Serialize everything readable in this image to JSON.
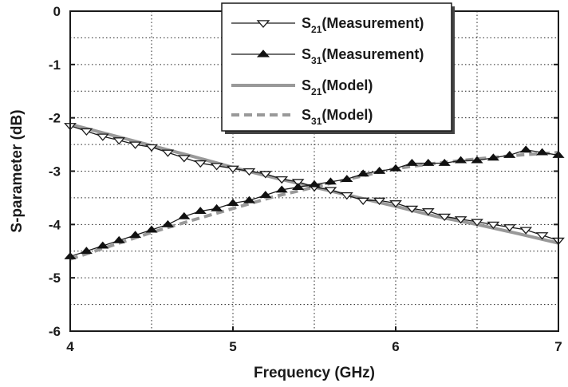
{
  "chart_data": {
    "type": "line",
    "title": "",
    "xlabel": "Frequency (GHz)",
    "ylabel": "S-parameter (dB)",
    "xlim": [
      4,
      7
    ],
    "ylim": [
      -6,
      0
    ],
    "xticks": [
      "4",
      "5",
      "6",
      "7"
    ],
    "yticks": [
      "0",
      "-1",
      "-2",
      "-3",
      "-4",
      "-5",
      "-6"
    ],
    "grid": "dotted",
    "legend_position": "top-right",
    "series": [
      {
        "name": "S21(Measurement)",
        "label_main": "S",
        "label_sub": "21",
        "label_rest": "(Measurement)",
        "style": "line-open-triangle-down",
        "color": "#1a1a1a",
        "x": [
          4.0,
          4.1,
          4.2,
          4.3,
          4.4,
          4.5,
          4.6,
          4.7,
          4.8,
          4.9,
          5.0,
          5.1,
          5.2,
          5.3,
          5.4,
          5.5,
          5.6,
          5.7,
          5.8,
          5.9,
          6.0,
          6.1,
          6.2,
          6.3,
          6.4,
          6.5,
          6.6,
          6.7,
          6.8,
          6.9,
          7.0
        ],
        "y": [
          -2.15,
          -2.25,
          -2.35,
          -2.42,
          -2.5,
          -2.55,
          -2.65,
          -2.75,
          -2.85,
          -2.9,
          -2.95,
          -3.0,
          -3.05,
          -3.15,
          -3.2,
          -3.3,
          -3.35,
          -3.45,
          -3.55,
          -3.55,
          -3.6,
          -3.7,
          -3.75,
          -3.85,
          -3.9,
          -3.95,
          -4.0,
          -4.05,
          -4.1,
          -4.2,
          -4.3
        ]
      },
      {
        "name": "S31(Measurement)",
        "label_main": "S",
        "label_sub": "31",
        "label_rest": "(Measurement)",
        "style": "line-filled-triangle-up",
        "color": "#1a1a1a",
        "x": [
          4.0,
          4.1,
          4.2,
          4.3,
          4.4,
          4.5,
          4.6,
          4.7,
          4.8,
          4.9,
          5.0,
          5.1,
          5.2,
          5.3,
          5.4,
          5.5,
          5.6,
          5.7,
          5.8,
          5.9,
          6.0,
          6.1,
          6.2,
          6.3,
          6.4,
          6.5,
          6.6,
          6.7,
          6.8,
          6.9,
          7.0
        ],
        "y": [
          -4.6,
          -4.5,
          -4.4,
          -4.3,
          -4.2,
          -4.1,
          -4.0,
          -3.85,
          -3.75,
          -3.7,
          -3.6,
          -3.55,
          -3.45,
          -3.35,
          -3.3,
          -3.25,
          -3.2,
          -3.15,
          -3.05,
          -3.0,
          -2.95,
          -2.85,
          -2.85,
          -2.85,
          -2.8,
          -2.8,
          -2.75,
          -2.7,
          -2.6,
          -2.65,
          -2.7
        ]
      },
      {
        "name": "S21(Model)",
        "label_main": "S",
        "label_sub": "21",
        "label_rest": "(Model)",
        "style": "solid-thick",
        "color": "#999999",
        "x": [
          4.0,
          4.25,
          4.5,
          4.75,
          5.0,
          5.25,
          5.5,
          5.75,
          6.0,
          6.25,
          6.5,
          6.75,
          7.0
        ],
        "y": [
          -2.12,
          -2.32,
          -2.52,
          -2.72,
          -2.93,
          -3.12,
          -3.3,
          -3.48,
          -3.66,
          -3.85,
          -4.0,
          -4.17,
          -4.35
        ]
      },
      {
        "name": "S31(Model)",
        "label_main": "S",
        "label_sub": "31",
        "label_rest": "(Model)",
        "style": "dashed-thick",
        "color": "#999999",
        "x": [
          4.0,
          4.25,
          4.5,
          4.75,
          5.0,
          5.25,
          5.5,
          5.75,
          6.0,
          6.25,
          6.5,
          6.75,
          7.0
        ],
        "y": [
          -4.65,
          -4.4,
          -4.15,
          -3.92,
          -3.7,
          -3.48,
          -3.3,
          -3.12,
          -2.95,
          -2.85,
          -2.77,
          -2.7,
          -2.65
        ]
      }
    ]
  }
}
